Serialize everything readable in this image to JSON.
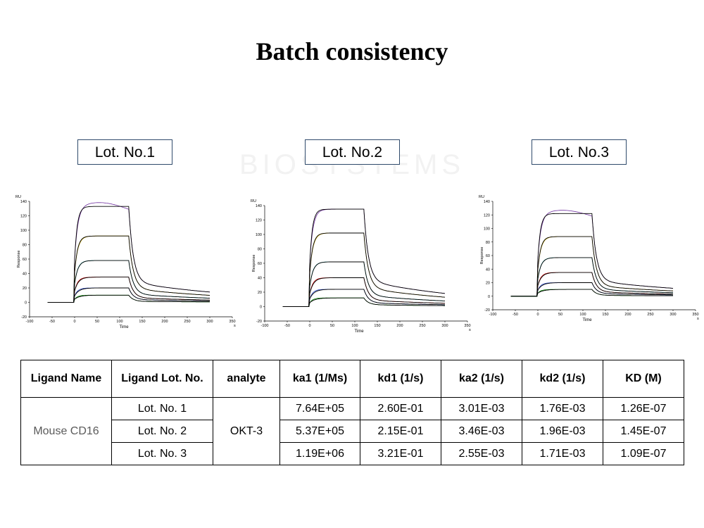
{
  "page": {
    "title": "Batch consistency",
    "watermark": "BIOSYSTEMS"
  },
  "chart_data": [
    {
      "type": "line",
      "lot_label": "Lot. No.1",
      "xlabel": "Time",
      "xunit": "s",
      "ylabel": "Response",
      "yunit": "RU",
      "xlim": [
        -100,
        350
      ],
      "ylim": [
        -20,
        140
      ],
      "xticks": [
        -100,
        -50,
        0,
        50,
        100,
        150,
        200,
        250,
        300,
        350
      ],
      "yticks": [
        -20,
        0,
        20,
        40,
        60,
        80,
        100,
        120,
        140
      ],
      "association_end": 120,
      "series": [
        {
          "plateau": 133,
          "end": 22,
          "color": "#000000",
          "fit": "#7030a0",
          "overshoot": true
        },
        {
          "plateau": 92,
          "end": 15,
          "color": "#000000",
          "fit": "#c9a800"
        },
        {
          "plateau": 58,
          "end": 9,
          "color": "#000000",
          "fit": "#00a0a0"
        },
        {
          "plateau": 35,
          "end": 5,
          "color": "#000000",
          "fit": "#c00000"
        },
        {
          "plateau": 20,
          "end": 3,
          "color": "#000000",
          "fit": "#2040c0"
        },
        {
          "plateau": 10,
          "end": 1,
          "color": "#000000",
          "fit": "#008000"
        }
      ]
    },
    {
      "type": "line",
      "lot_label": "Lot. No.2",
      "xlabel": "Time",
      "xunit": "s",
      "ylabel": "Response",
      "yunit": "RU",
      "xlim": [
        -100,
        350
      ],
      "ylim": [
        -20,
        140
      ],
      "xticks": [
        -100,
        -50,
        0,
        50,
        100,
        150,
        200,
        250,
        300,
        350
      ],
      "yticks": [
        -20,
        0,
        20,
        40,
        60,
        80,
        100,
        120,
        140
      ],
      "association_end": 120,
      "series": [
        {
          "plateau": 135,
          "end": 28,
          "color": "#000000",
          "fit": "#7030a0",
          "overshoot": false
        },
        {
          "plateau": 102,
          "end": 20,
          "color": "#000000",
          "fit": "#c9a800"
        },
        {
          "plateau": 62,
          "end": 12,
          "color": "#000000",
          "fit": "#00a0a0"
        },
        {
          "plateau": 40,
          "end": 7,
          "color": "#000000",
          "fit": "#c00000"
        },
        {
          "plateau": 24,
          "end": 4,
          "color": "#000000",
          "fit": "#2040c0"
        },
        {
          "plateau": 12,
          "end": 2,
          "color": "#000000",
          "fit": "#008000"
        }
      ]
    },
    {
      "type": "line",
      "lot_label": "Lot. No.3",
      "xlabel": "Time",
      "xunit": "s",
      "ylabel": "Response",
      "yunit": "RU",
      "xlim": [
        -100,
        350
      ],
      "ylim": [
        -20,
        140
      ],
      "xticks": [
        -100,
        -50,
        0,
        50,
        100,
        150,
        200,
        250,
        300,
        350
      ],
      "yticks": [
        -20,
        0,
        20,
        40,
        60,
        80,
        100,
        120,
        140
      ],
      "association_end": 120,
      "series": [
        {
          "plateau": 122,
          "end": 18,
          "color": "#000000",
          "fit": "#7030a0",
          "overshoot": true
        },
        {
          "plateau": 88,
          "end": 12,
          "color": "#000000",
          "fit": "#c9a800"
        },
        {
          "plateau": 57,
          "end": 8,
          "color": "#000000",
          "fit": "#00a0a0"
        },
        {
          "plateau": 35,
          "end": 5,
          "color": "#000000",
          "fit": "#c00000"
        },
        {
          "plateau": 20,
          "end": 3,
          "color": "#000000",
          "fit": "#2040c0"
        },
        {
          "plateau": 10,
          "end": 1,
          "color": "#000000",
          "fit": "#008000"
        }
      ]
    }
  ],
  "table": {
    "headers": [
      "Ligand Name",
      "Ligand Lot. No.",
      "analyte",
      "ka1 (1/Ms)",
      "kd1 (1/s)",
      "ka2 (1/s)",
      "kd2 (1/s)",
      "KD (M)"
    ],
    "ligand_name": "Mouse CD16",
    "analyte": "OKT-3",
    "rows": [
      {
        "lot": "Lot. No. 1",
        "ka1": "7.64E+05",
        "kd1": "2.60E-01",
        "ka2": "3.01E-03",
        "kd2": "1.76E-03",
        "kd": "1.26E-07"
      },
      {
        "lot": "Lot. No. 2",
        "ka1": "5.37E+05",
        "kd1": "2.15E-01",
        "ka2": "3.46E-03",
        "kd2": "1.96E-03",
        "kd": "1.45E-07"
      },
      {
        "lot": "Lot. No. 3",
        "ka1": "1.19E+06",
        "kd1": "3.21E-01",
        "ka2": "2.55E-03",
        "kd2": "1.71E-03",
        "kd": "1.09E-07"
      }
    ]
  }
}
